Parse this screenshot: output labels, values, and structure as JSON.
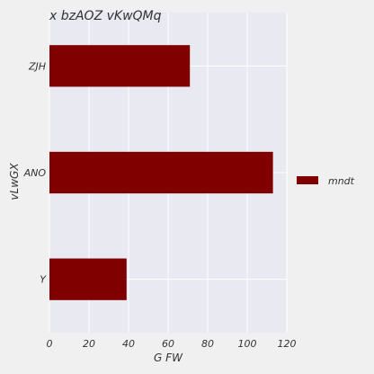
{
  "chart_data": {
    "type": "bar",
    "orientation": "horizontal",
    "title": "x bzAOZ vKwQMq",
    "xlabel": "G  FW",
    "ylabel": "vLwGX",
    "categories": [
      "ZJH",
      "ANO",
      "Y"
    ],
    "series": [
      {
        "name": "mndt",
        "values": [
          71,
          113,
          39
        ]
      }
    ],
    "xlim": [
      0,
      120
    ],
    "xticks": [
      0,
      20,
      40,
      60,
      80,
      100,
      120
    ],
    "grid": true,
    "legend_position": "right",
    "colors": {
      "bar": "#800000",
      "plot_background": "#e9e9f1",
      "page_background": "#f0f0f0",
      "grid": "#ffffff"
    }
  }
}
